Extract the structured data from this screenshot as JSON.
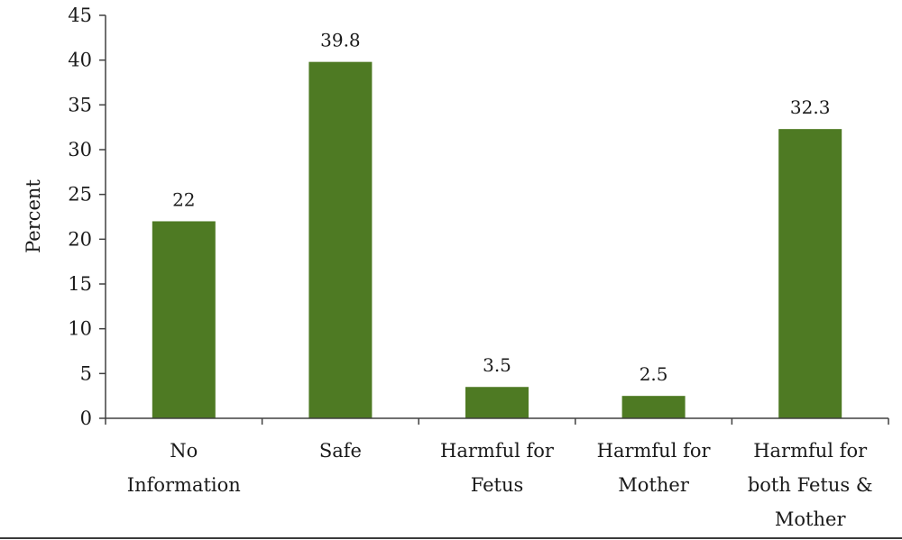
{
  "chart_data": {
    "type": "bar",
    "categories": [
      [
        "No",
        "Information"
      ],
      [
        "Safe"
      ],
      [
        "Harmful for",
        "Fetus"
      ],
      [
        "Harmful for",
        "Mother"
      ],
      [
        "Harmful for",
        "both Fetus &",
        "Mother"
      ]
    ],
    "values": [
      22,
      39.8,
      3.5,
      2.5,
      32.3
    ],
    "value_labels": [
      "22",
      "39.8",
      "3.5",
      "2.5",
      "32.3"
    ],
    "ylabel": "Percent",
    "xlabel": "",
    "ylim": [
      0,
      45
    ],
    "yticks": [
      0,
      5,
      10,
      15,
      20,
      25,
      30,
      35,
      40,
      45
    ],
    "grid": false,
    "legend": "none",
    "bar_color": "#4e7a23",
    "axis_color": "#404040",
    "bottom_rule_color": "#3a3a3a"
  }
}
